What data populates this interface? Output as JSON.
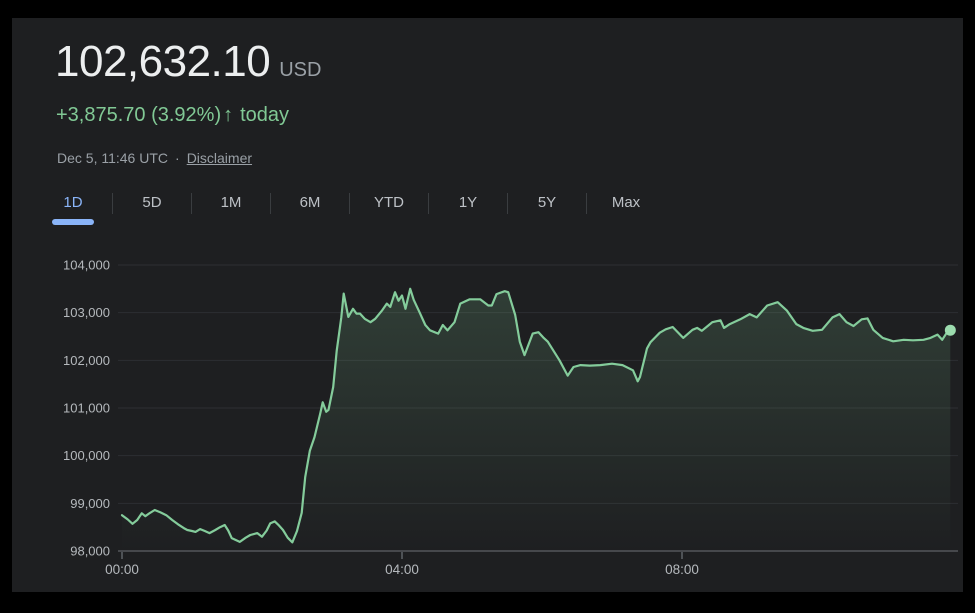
{
  "header": {
    "price": "102,632.10",
    "currency": "USD",
    "change": "+3,875.70 (3.92%)",
    "arrow": "↑",
    "change_period": "today",
    "date": "Dec 5, 11:46 UTC",
    "separator": "·",
    "disclaimer": "Disclaimer"
  },
  "tabs": {
    "items": [
      {
        "label": "1D",
        "active": true
      },
      {
        "label": "5D",
        "active": false
      },
      {
        "label": "1M",
        "active": false
      },
      {
        "label": "6M",
        "active": false
      },
      {
        "label": "YTD",
        "active": false
      },
      {
        "label": "1Y",
        "active": false
      },
      {
        "label": "5Y",
        "active": false
      },
      {
        "label": "Max",
        "active": false
      }
    ]
  },
  "colors": {
    "frame_bg": "#000000",
    "card_bg": "#1e1f21",
    "price_text": "#eceeef",
    "muted_text": "#9aa0a6",
    "positive_green": "#81c995",
    "active_tab_blue": "#8ab4f8",
    "inactive_tab": "#bdc1c6",
    "axis_label": "#b5b9bd",
    "gridline": "#2d2f32",
    "baseline": "#6e7276",
    "tick": "#5f6368",
    "line": "#84cc9b",
    "area_top": "rgba(129,201,149,0.20)",
    "area_bottom": "rgba(129,201,149,0)",
    "dot": "#9cdcae",
    "divider": "#3a3d40"
  },
  "chart_data": {
    "type": "line",
    "title": "Price intraday (1D)",
    "unit": "USD",
    "x_unit": "minutes since 00:00 UTC",
    "xlabel": "",
    "ylabel": "",
    "grid": true,
    "legend": "none",
    "xlim": [
      0,
      715
    ],
    "ylim": [
      98000,
      104000
    ],
    "end_value": 102632.1,
    "x_ticks": [
      {
        "t": 0,
        "label": "00:00"
      },
      {
        "t": 240,
        "label": "04:00"
      },
      {
        "t": 480,
        "label": "08:00"
      }
    ],
    "y_ticks": [
      {
        "v": 98000,
        "label": "98,000"
      },
      {
        "v": 99000,
        "label": "99,000"
      },
      {
        "v": 100000,
        "label": "100,000"
      },
      {
        "v": 101000,
        "label": "101,000"
      },
      {
        "v": 102000,
        "label": "102,000"
      },
      {
        "v": 103000,
        "label": "103,000"
      },
      {
        "v": 104000,
        "label": "104,000"
      }
    ],
    "points": [
      [
        0,
        98750
      ],
      [
        5,
        98660
      ],
      [
        9,
        98570
      ],
      [
        13,
        98650
      ],
      [
        17,
        98790
      ],
      [
        20,
        98730
      ],
      [
        24,
        98800
      ],
      [
        28,
        98860
      ],
      [
        33,
        98810
      ],
      [
        38,
        98750
      ],
      [
        43,
        98650
      ],
      [
        48,
        98560
      ],
      [
        53,
        98480
      ],
      [
        56,
        98440
      ],
      [
        60,
        98420
      ],
      [
        63,
        98400
      ],
      [
        67,
        98460
      ],
      [
        71,
        98420
      ],
      [
        75,
        98375
      ],
      [
        80,
        98440
      ],
      [
        84,
        98500
      ],
      [
        88,
        98545
      ],
      [
        91,
        98430
      ],
      [
        94,
        98270
      ],
      [
        101,
        98190
      ],
      [
        106,
        98280
      ],
      [
        110,
        98335
      ],
      [
        116,
        98375
      ],
      [
        120,
        98300
      ],
      [
        124,
        98430
      ],
      [
        127,
        98580
      ],
      [
        131,
        98620
      ],
      [
        134,
        98550
      ],
      [
        138,
        98440
      ],
      [
        142,
        98280
      ],
      [
        146,
        98180
      ],
      [
        150,
        98420
      ],
      [
        154,
        98800
      ],
      [
        157,
        99550
      ],
      [
        161,
        100100
      ],
      [
        165,
        100390
      ],
      [
        170,
        100890
      ],
      [
        172,
        101120
      ],
      [
        175,
        100920
      ],
      [
        177,
        100960
      ],
      [
        181,
        101440
      ],
      [
        184,
        102200
      ],
      [
        188,
        102900
      ],
      [
        190,
        103400
      ],
      [
        194,
        102910
      ],
      [
        198,
        103080
      ],
      [
        201,
        102980
      ],
      [
        204,
        102980
      ],
      [
        208,
        102870
      ],
      [
        213,
        102800
      ],
      [
        217,
        102870
      ],
      [
        223,
        103050
      ],
      [
        227,
        103190
      ],
      [
        230,
        103120
      ],
      [
        234,
        103430
      ],
      [
        237,
        103250
      ],
      [
        240,
        103360
      ],
      [
        243,
        103080
      ],
      [
        247,
        103500
      ],
      [
        250,
        103270
      ],
      [
        255,
        103010
      ],
      [
        260,
        102740
      ],
      [
        264,
        102630
      ],
      [
        271,
        102560
      ],
      [
        275,
        102740
      ],
      [
        279,
        102630
      ],
      [
        285,
        102800
      ],
      [
        290,
        103190
      ],
      [
        298,
        103280
      ],
      [
        307,
        103280
      ],
      [
        314,
        103150
      ],
      [
        317,
        103150
      ],
      [
        321,
        103390
      ],
      [
        328,
        103450
      ],
      [
        331,
        103430
      ],
      [
        337,
        102950
      ],
      [
        341,
        102390
      ],
      [
        345,
        102110
      ],
      [
        352,
        102560
      ],
      [
        357,
        102590
      ],
      [
        361,
        102480
      ],
      [
        365,
        102390
      ],
      [
        375,
        102000
      ],
      [
        382,
        101680
      ],
      [
        387,
        101860
      ],
      [
        393,
        101900
      ],
      [
        401,
        101890
      ],
      [
        410,
        101900
      ],
      [
        420,
        101930
      ],
      [
        429,
        101900
      ],
      [
        438,
        101790
      ],
      [
        442,
        101560
      ],
      [
        444,
        101650
      ],
      [
        446,
        101850
      ],
      [
        448,
        102050
      ],
      [
        450,
        102250
      ],
      [
        453,
        102380
      ],
      [
        457,
        102480
      ],
      [
        461,
        102580
      ],
      [
        466,
        102650
      ],
      [
        472,
        102700
      ],
      [
        481,
        102470
      ],
      [
        489,
        102640
      ],
      [
        493,
        102680
      ],
      [
        497,
        102620
      ],
      [
        502,
        102720
      ],
      [
        506,
        102800
      ],
      [
        513,
        102840
      ],
      [
        516,
        102680
      ],
      [
        521,
        102760
      ],
      [
        530,
        102860
      ],
      [
        538,
        102970
      ],
      [
        544,
        102900
      ],
      [
        553,
        103150
      ],
      [
        562,
        103220
      ],
      [
        570,
        103040
      ],
      [
        578,
        102760
      ],
      [
        584,
        102680
      ],
      [
        592,
        102620
      ],
      [
        600,
        102640
      ],
      [
        609,
        102900
      ],
      [
        615,
        102970
      ],
      [
        621,
        102800
      ],
      [
        627,
        102720
      ],
      [
        634,
        102860
      ],
      [
        639,
        102880
      ],
      [
        644,
        102640
      ],
      [
        652,
        102470
      ],
      [
        661,
        102400
      ],
      [
        670,
        102430
      ],
      [
        678,
        102420
      ],
      [
        687,
        102430
      ],
      [
        693,
        102470
      ],
      [
        699,
        102540
      ],
      [
        703,
        102430
      ],
      [
        708,
        102620
      ],
      [
        710,
        102632
      ]
    ]
  }
}
